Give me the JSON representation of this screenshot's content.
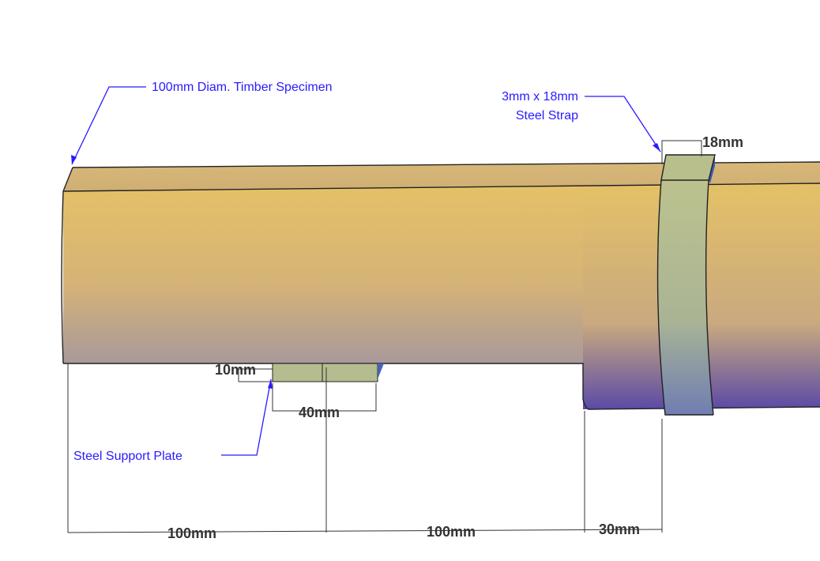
{
  "callouts": {
    "timber": "100mm Diam. Timber Specimen",
    "strap_line1": "3mm x 18mm",
    "strap_line2": "Steel Strap",
    "plate": "Steel Support Plate"
  },
  "dimensions": {
    "strap_width": "18mm",
    "plate_thickness": "10mm",
    "plate_length": "40mm",
    "span_left": "100mm",
    "span_middle": "100mm",
    "span_right": "30mm"
  },
  "colors": {
    "timber_top": "#e8c36a",
    "timber_bottom": "#a99a9a",
    "timber_cut_bottom": "#6a55a8",
    "strap_top": "#b7bf8e",
    "strap_bottom": "#6f7cb0",
    "plate": "#b6bd90",
    "annotation": "#2a1aff",
    "dimension": "#333333"
  }
}
